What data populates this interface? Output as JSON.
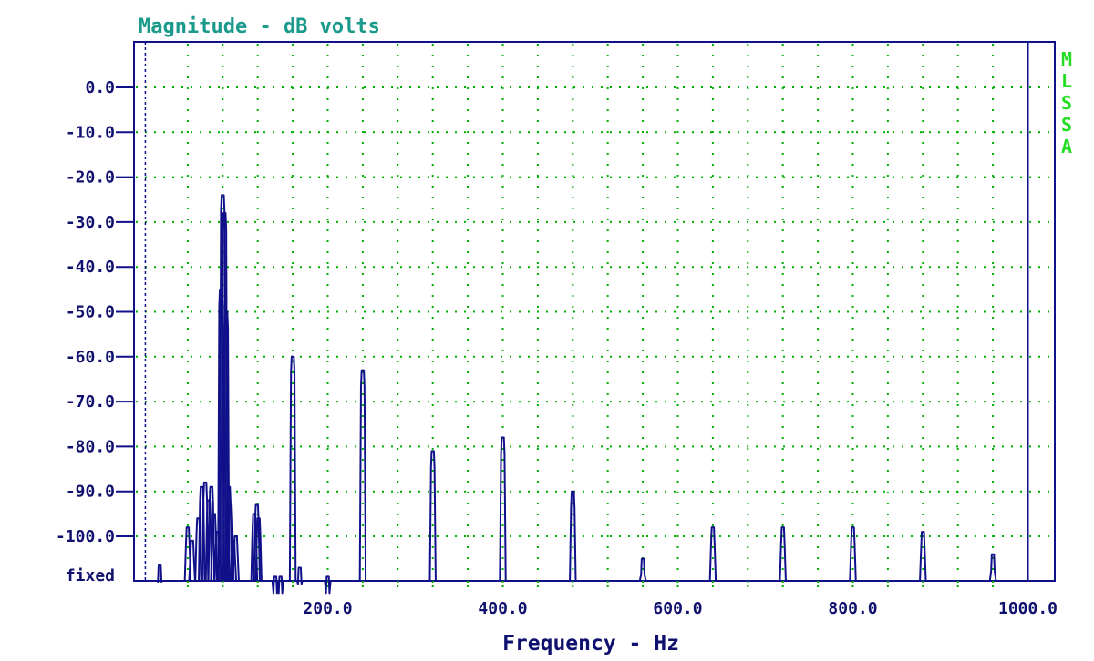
{
  "chart_data": {
    "type": "line",
    "title": "Magnitude - dB volts",
    "xlabel": "Frequency - Hz",
    "ylabel": "",
    "xlim": [
      0,
      1000
    ],
    "ylim": [
      -110,
      10
    ],
    "x_tick_labels": [
      {
        "value": 200,
        "label": "200.0"
      },
      {
        "value": 400,
        "label": "400.0"
      },
      {
        "value": 600,
        "label": "600.0"
      },
      {
        "value": 800,
        "label": "800.0"
      },
      {
        "value": 1000,
        "label": "1000.0"
      }
    ],
    "y_tick_labels": [
      {
        "value": 0,
        "label": "0.0"
      },
      {
        "value": -10,
        "label": "-10.0"
      },
      {
        "value": -20,
        "label": "-20.0"
      },
      {
        "value": -30,
        "label": "-30.0"
      },
      {
        "value": -40,
        "label": "-40.0"
      },
      {
        "value": -50,
        "label": "-50.0"
      },
      {
        "value": -60,
        "label": "-60.0"
      },
      {
        "value": -70,
        "label": "-70.0"
      },
      {
        "value": -80,
        "label": "-80.0"
      },
      {
        "value": -90,
        "label": "-90.0"
      },
      {
        "value": -100,
        "label": "-100.0"
      }
    ],
    "bottom_label": "fixed",
    "side_label": "MLSSA",
    "grid": true,
    "grid_x_step": 40,
    "grid_y_step": 10,
    "marker_x": 2,
    "colors": {
      "title": "#1a9a8a",
      "axis_text": "#10106e",
      "trace": "#10108a",
      "grid": "#00b000",
      "side": "#22dd22",
      "frame": "#10108a"
    },
    "series": [
      {
        "peaks": [
          {
            "f": 8,
            "db": -106.5
          },
          {
            "f": 40,
            "db": -98
          },
          {
            "f": 45,
            "db": -101
          },
          {
            "f": 52,
            "db": -96
          },
          {
            "f": 56,
            "db": -89
          },
          {
            "f": 60,
            "db": -88
          },
          {
            "f": 64,
            "db": -92
          },
          {
            "f": 67,
            "db": -89
          },
          {
            "f": 70,
            "db": -95
          },
          {
            "f": 74,
            "db": -99
          },
          {
            "f": 78,
            "db": -45
          },
          {
            "f": 80,
            "db": -24
          },
          {
            "f": 82,
            "db": -28
          },
          {
            "f": 84,
            "db": -50
          },
          {
            "f": 87,
            "db": -89
          },
          {
            "f": 89,
            "db": -93
          },
          {
            "f": 92,
            "db": -101
          },
          {
            "f": 95,
            "db": -100
          },
          {
            "f": 116,
            "db": -95
          },
          {
            "f": 119,
            "db": -93
          },
          {
            "f": 121,
            "db": -96
          },
          {
            "f": 140,
            "db": -109
          },
          {
            "f": 146,
            "db": -109
          },
          {
            "f": 160,
            "db": -60
          },
          {
            "f": 168,
            "db": -107
          },
          {
            "f": 200,
            "db": -109
          },
          {
            "f": 240,
            "db": -63
          },
          {
            "f": 320,
            "db": -81
          },
          {
            "f": 400,
            "db": -78
          },
          {
            "f": 480,
            "db": -90
          },
          {
            "f": 560,
            "db": -105
          },
          {
            "f": 640,
            "db": -98
          },
          {
            "f": 720,
            "db": -98
          },
          {
            "f": 800,
            "db": -98
          },
          {
            "f": 880,
            "db": -99
          },
          {
            "f": 960,
            "db": -104
          }
        ]
      }
    ]
  }
}
